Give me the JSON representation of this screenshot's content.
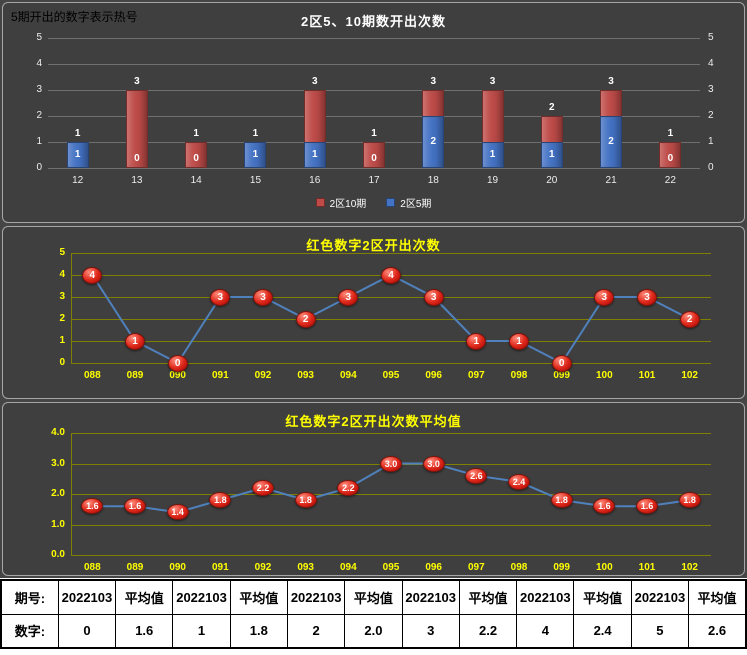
{
  "note": "5期开出的数字表示热号",
  "colors": {
    "panel_bg": "#3F3F3F",
    "panel_border": "#A6A6A6",
    "grid_top_chart": "#6F6F6F",
    "grid_line_charts": "#7F7F00",
    "title_top_chart": "#FFFFFF",
    "title_line_charts": "#FFFF00",
    "axis_top_chart": "#EDEDED",
    "axis_line_charts": "#FFFF00",
    "bar_red": "#BE4B48",
    "bar_blue": "#4472C4",
    "line": "#4F81BD",
    "marker_red": "#D21E12",
    "table_bg": "#FFFFFF",
    "table_text": "#000000"
  },
  "chart_data": [
    {
      "type": "bar",
      "title": "2区5、10期数开出次数",
      "categories": [
        "12",
        "13",
        "14",
        "15",
        "16",
        "17",
        "18",
        "19",
        "20",
        "21",
        "22"
      ],
      "series": [
        {
          "name": "2区10期",
          "color": "#BE4B48",
          "values": [
            1,
            3,
            1,
            1,
            3,
            1,
            3,
            3,
            2,
            3,
            1
          ]
        },
        {
          "name": "2区5期",
          "color": "#4472C4",
          "values": [
            1,
            0,
            0,
            1,
            1,
            0,
            2,
            1,
            1,
            2,
            0
          ]
        }
      ],
      "ylim": [
        0,
        5
      ],
      "yticks": [
        "0",
        "1",
        "2",
        "3",
        "4",
        "5"
      ],
      "grid": true,
      "legend_position": "bottom",
      "bar_overlap": "blue-in-front",
      "secondary_right_axis": true
    },
    {
      "type": "line",
      "title": "红色数字2区开出次数",
      "categories": [
        "088",
        "089",
        "090",
        "091",
        "092",
        "093",
        "094",
        "095",
        "096",
        "097",
        "098",
        "099",
        "100",
        "101",
        "102"
      ],
      "values": [
        4,
        1,
        0,
        3,
        3,
        2,
        3,
        4,
        3,
        1,
        1,
        0,
        3,
        3,
        2
      ],
      "labels": [
        "4",
        "1",
        "0",
        "3",
        "3",
        "2",
        "3",
        "4",
        "3",
        "1",
        "1",
        "0",
        "3",
        "3",
        "2"
      ],
      "ylim": [
        0,
        5
      ],
      "yticks": [
        "0",
        "1",
        "2",
        "3",
        "4",
        "5"
      ],
      "grid": true,
      "line_color": "#4F81BD",
      "marker_color": "#D21E12"
    },
    {
      "type": "line",
      "title": "红色数字2区开出次数平均值",
      "categories": [
        "088",
        "089",
        "090",
        "091",
        "092",
        "093",
        "094",
        "095",
        "096",
        "097",
        "098",
        "099",
        "100",
        "101",
        "102"
      ],
      "values": [
        1.6,
        1.6,
        1.4,
        1.8,
        2.2,
        1.8,
        2.2,
        3.0,
        3.0,
        2.6,
        2.4,
        1.8,
        1.6,
        1.6,
        1.8
      ],
      "labels": [
        "1.6",
        "1.6",
        "1.4",
        "1.8",
        "2.2",
        "1.8",
        "2.2",
        "3.0",
        "3.0",
        "2.6",
        "2.4",
        "1.8",
        "1.6",
        "1.6",
        "1.8"
      ],
      "ylim": [
        0,
        4
      ],
      "yticks": [
        "0.0",
        "1.0",
        "2.0",
        "3.0",
        "4.0"
      ],
      "grid": true,
      "line_color": "#4F81BD",
      "marker_color": "#D21E12"
    }
  ],
  "table": {
    "rows": [
      [
        "期号:",
        "2022103",
        "平均值",
        "2022103",
        "平均值",
        "2022103",
        "平均值",
        "2022103",
        "平均值",
        "2022103",
        "平均值",
        "2022103",
        "平均值"
      ],
      [
        "数字:",
        "0",
        "1.6",
        "1",
        "1.8",
        "2",
        "2.0",
        "3",
        "2.2",
        "4",
        "2.4",
        "5",
        "2.6"
      ]
    ]
  }
}
